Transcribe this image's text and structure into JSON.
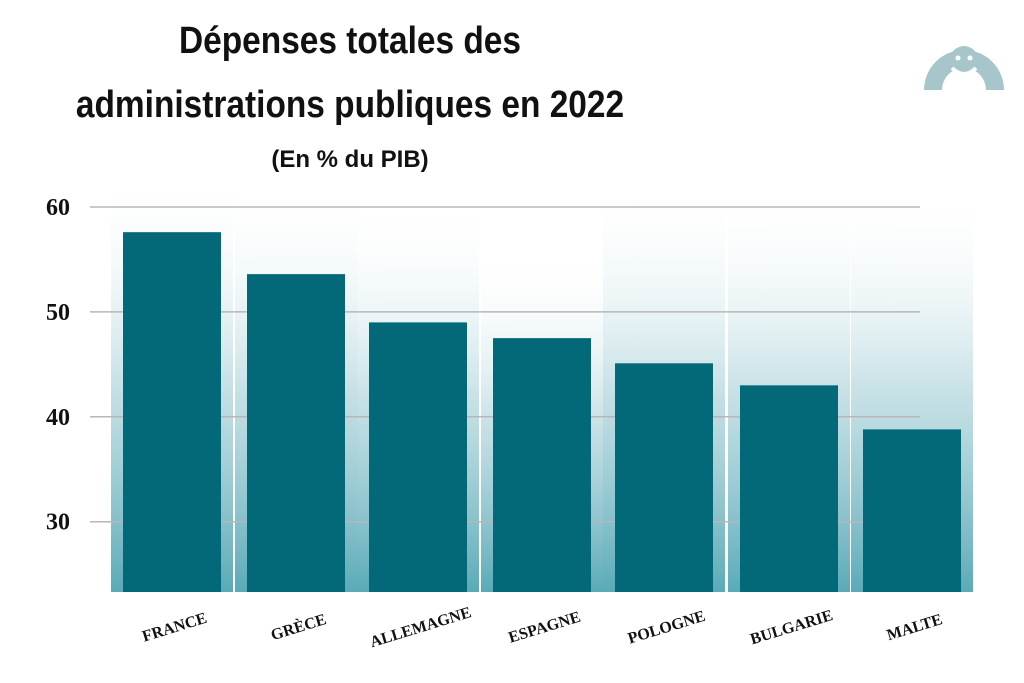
{
  "header": {
    "title_line1": "Dépenses totales des",
    "title_line2": "administrations publiques en 2022",
    "subtitle": "(En % du PIB)"
  },
  "logo": {
    "icon": "arch-smile-logo",
    "color": "#a7c6cc"
  },
  "chart_data": {
    "type": "bar",
    "title": "Dépenses totales des administrations publiques en 2022",
    "subtitle": "(En % du PIB)",
    "categories": [
      "FRANCE",
      "GRÈCE",
      "ALLEMAGNE",
      "ESPAGNE",
      "POLOGNE",
      "BULGARIE",
      "MALTE"
    ],
    "values": [
      57.6,
      53.6,
      49.0,
      47.5,
      45.1,
      43.0,
      38.8
    ],
    "ylim": [
      23.3,
      60
    ],
    "yticks": [
      30,
      40,
      50,
      60
    ],
    "grid": true,
    "legend": "none",
    "colors": {
      "bar": "#036877",
      "glow": "#5aaab8",
      "grid": "#b7b7b7"
    }
  }
}
